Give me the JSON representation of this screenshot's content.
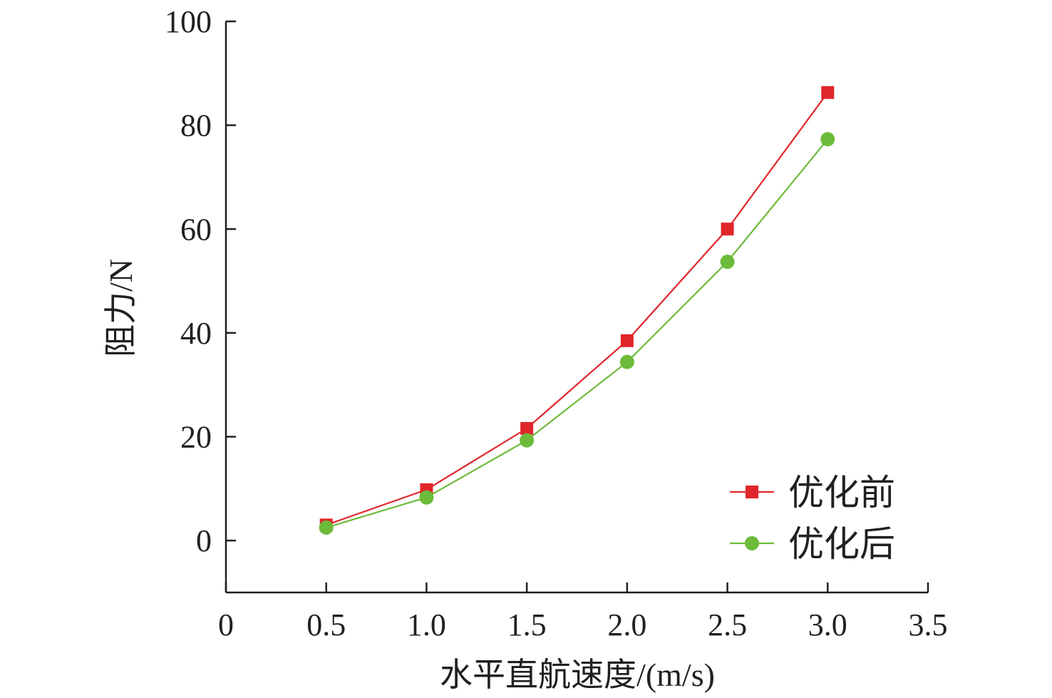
{
  "chart_data": {
    "type": "line",
    "xlabel": "水平直航速度/(m/s)",
    "ylabel": "阻力/N",
    "xlim": [
      0,
      3.5
    ],
    "ylim": [
      -10,
      100
    ],
    "xticks": [
      0,
      0.5,
      1.0,
      1.5,
      2.0,
      2.5,
      3.0,
      3.5
    ],
    "xtick_labels": [
      "0",
      "0.5",
      "1.0",
      "1.5",
      "2.0",
      "2.5",
      "3.0",
      "3.5"
    ],
    "yticks": [
      0,
      20,
      40,
      60,
      80,
      100
    ],
    "ytick_labels": [
      "0",
      "20",
      "40",
      "60",
      "80",
      "100"
    ],
    "grid": false,
    "legend_position": "bottom-right",
    "series": [
      {
        "name": "优化前",
        "color": "#e0262a",
        "marker": "square",
        "x": [
          0.5,
          1.0,
          1.5,
          2.0,
          2.5,
          3.0
        ],
        "y": [
          3.0,
          9.8,
          21.6,
          38.5,
          60.0,
          86.3
        ]
      },
      {
        "name": "优化后",
        "color": "#6dbb3a",
        "marker": "circle",
        "x": [
          0.5,
          1.0,
          1.5,
          2.0,
          2.5,
          3.0
        ],
        "y": [
          2.5,
          8.3,
          19.3,
          34.4,
          53.7,
          77.3
        ]
      }
    ]
  }
}
